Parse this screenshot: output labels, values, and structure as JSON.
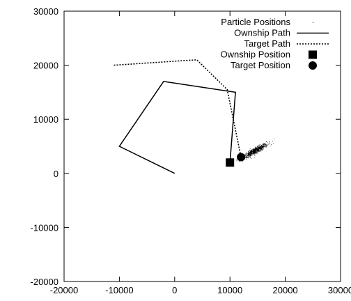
{
  "chart_data": {
    "type": "line",
    "title": "",
    "xlabel": "",
    "ylabel": "",
    "xlim": [
      -20000,
      30000
    ],
    "ylim": [
      -20000,
      30000
    ],
    "x_ticks": [
      -20000,
      -10000,
      0,
      10000,
      20000,
      30000
    ],
    "y_ticks": [
      -20000,
      -10000,
      0,
      10000,
      20000,
      30000
    ],
    "x_tick_labels": [
      "-20000",
      "-10000",
      "0",
      "10000",
      "20000",
      "30000"
    ],
    "y_tick_labels": [
      "-20000",
      "-10000",
      "0",
      "10000",
      "20000",
      "30000"
    ],
    "grid": false,
    "legend_position": "top-right",
    "series": [
      {
        "name": "Particle Positions",
        "kind": "scatter-cloud",
        "center": [
          14500,
          4200
        ],
        "spread_along": 2600,
        "spread_across": 500,
        "direction_deg": 30,
        "count": 700
      },
      {
        "name": "Ownship Path",
        "kind": "line",
        "style": "solid",
        "x": [
          0,
          -10000,
          -2000,
          11000,
          10000
        ],
        "y": [
          0,
          5000,
          17000,
          15000,
          2000
        ]
      },
      {
        "name": "Target Path",
        "kind": "line",
        "style": "dotted",
        "x": [
          -11000,
          4000,
          9500,
          12000
        ],
        "y": [
          20000,
          21000,
          15500,
          3000
        ]
      },
      {
        "name": "Ownship Position",
        "kind": "marker",
        "marker": "square",
        "x": 10000,
        "y": 2000
      },
      {
        "name": "Target Position",
        "kind": "marker",
        "marker": "circle",
        "x": 12000,
        "y": 3000
      }
    ]
  }
}
